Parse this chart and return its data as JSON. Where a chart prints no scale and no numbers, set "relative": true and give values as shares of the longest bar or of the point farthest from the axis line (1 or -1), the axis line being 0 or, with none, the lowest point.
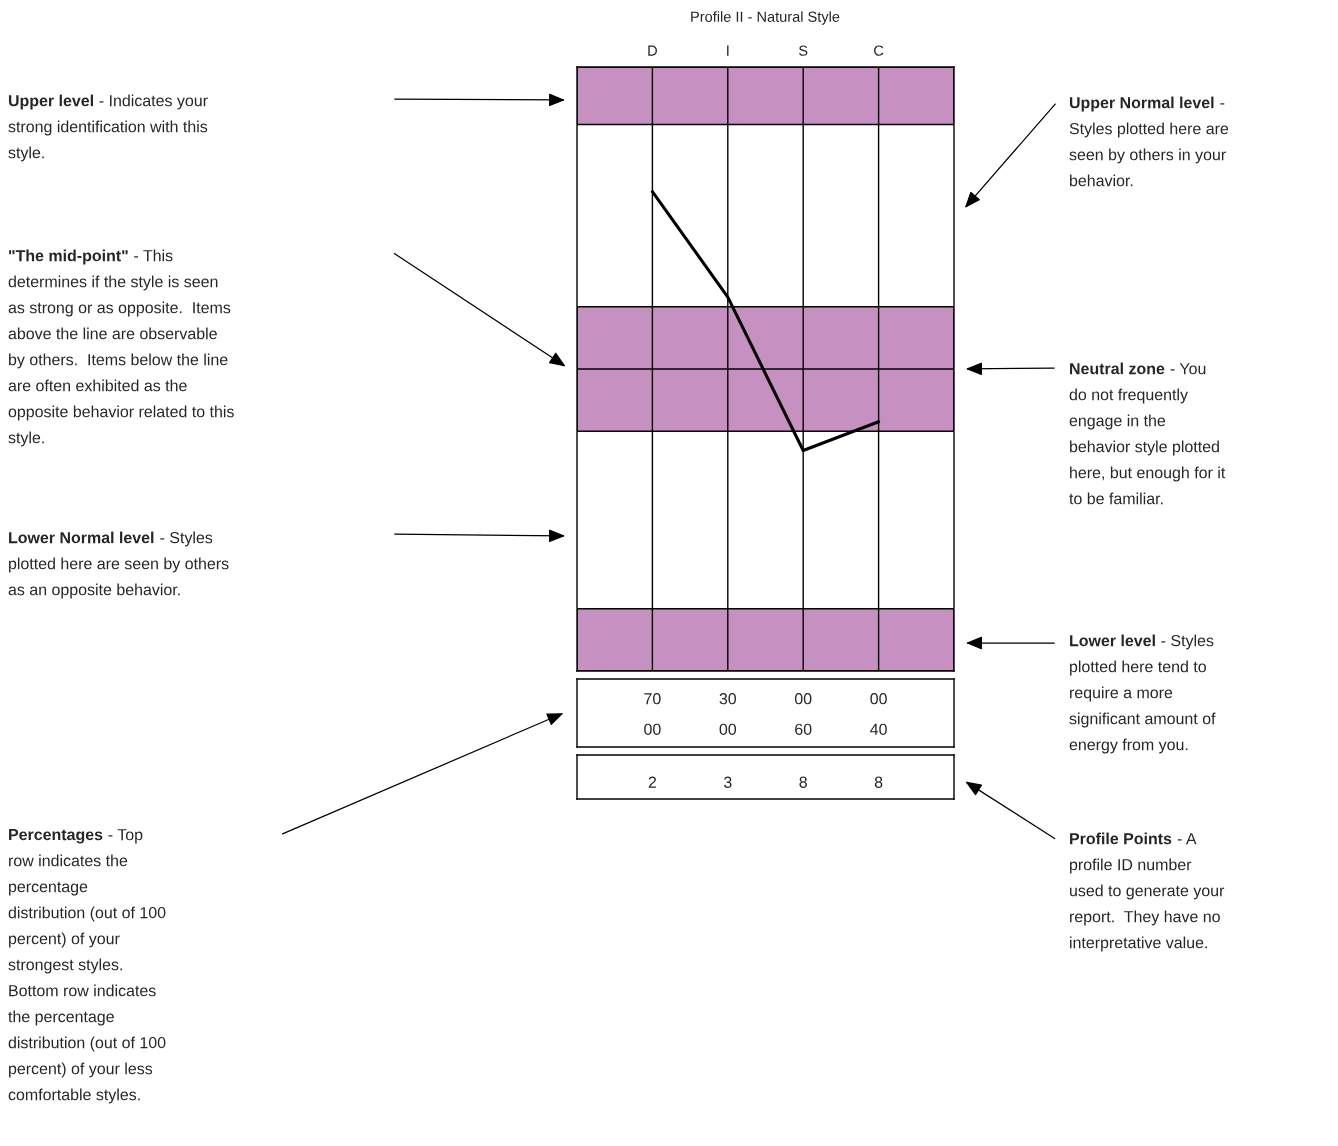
{
  "chart_data": {
    "type": "line",
    "title": "Profile II - Natural Style",
    "categories": [
      "D",
      "I",
      "S",
      "C"
    ],
    "series": [
      {
        "color": "#000000",
        "values": [
          1,
          0.78,
          0.46,
          0.52
        ]
      }
    ],
    "relative": true,
    "grid": "x",
    "marker": "none",
    "line_style": "solid",
    "bands": [
      {
        "axis": "y",
        "from": 1.14,
        "to": 1.26,
        "color": "#c690c0"
      },
      {
        "axis": "y",
        "from": 0.5,
        "to": 0.76,
        "color": "#c690c0"
      },
      {
        "axis": "y",
        "from": 0,
        "to": 0.13,
        "color": "#c690c0"
      }
    ],
    "ref_lines": [
      {
        "axis": "y",
        "value": 0.63,
        "color": "#000000"
      }
    ],
    "annotations": [
      "Upper level - Indicates your\nstrong identification with this\nstyle.",
      "\"The mid-point\" - This\ndetermines if the style is seen\nas strong or as opposite.  Items\nabove the line are observable\nby others.  Items below the line\nare often exhibited as the\nopposite behavior related to this\nstyle.",
      "Lower Normal level - Styles\nplotted here are seen by others\nas an opposite behavior.",
      "Percentages - Top\nrow indicates the\npercentage\ndistribution (out of 100\npercent) of your\nstrongest styles.\nBottom row indicates\nthe percentage\ndistribution (out of 100\npercent) of your less\ncomfortable styles.",
      "Upper Normal level -\nStyles plotted here are\nseen by others in your\nbehavior.",
      "Neutral zone - You\ndo not frequently\nengage in the\nbehavior style plotted\nhere, but enough for it\nto be familiar.",
      "Lower level - Styles\nplotted here tend to\nrequire a more\nsignificant amount of\nenergy from you.",
      "Profile Points - A\nprofile ID number\nused to generate your\nreport.  They have no\ninterpretative value.",
      "70",
      "30",
      "00",
      "00",
      "00",
      "00",
      "60",
      "40",
      "2",
      "3",
      "8",
      "8"
    ]
  }
}
